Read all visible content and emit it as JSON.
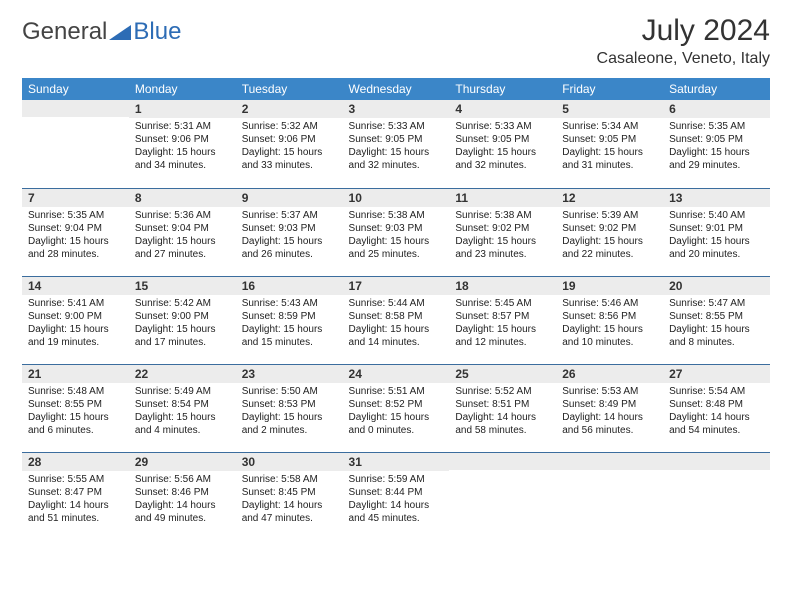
{
  "brand": {
    "word1": "General",
    "word2": "Blue"
  },
  "title": "July 2024",
  "location": "Casaleone, Veneto, Italy",
  "colors": {
    "header_bg": "#3b86c8",
    "header_text": "#ffffff",
    "row_divider": "#3b6d9e",
    "daynum_bg": "#ececec",
    "text": "#222222",
    "brand_blue": "#2d6cb5",
    "brand_dark": "#555555",
    "page_bg": "#ffffff"
  },
  "day_labels": [
    "Sunday",
    "Monday",
    "Tuesday",
    "Wednesday",
    "Thursday",
    "Friday",
    "Saturday"
  ],
  "weeks": [
    [
      {
        "n": "",
        "sr": "",
        "ss": "",
        "d1": "",
        "d2": ""
      },
      {
        "n": "1",
        "sr": "Sunrise: 5:31 AM",
        "ss": "Sunset: 9:06 PM",
        "d1": "Daylight: 15 hours",
        "d2": "and 34 minutes."
      },
      {
        "n": "2",
        "sr": "Sunrise: 5:32 AM",
        "ss": "Sunset: 9:06 PM",
        "d1": "Daylight: 15 hours",
        "d2": "and 33 minutes."
      },
      {
        "n": "3",
        "sr": "Sunrise: 5:33 AM",
        "ss": "Sunset: 9:05 PM",
        "d1": "Daylight: 15 hours",
        "d2": "and 32 minutes."
      },
      {
        "n": "4",
        "sr": "Sunrise: 5:33 AM",
        "ss": "Sunset: 9:05 PM",
        "d1": "Daylight: 15 hours",
        "d2": "and 32 minutes."
      },
      {
        "n": "5",
        "sr": "Sunrise: 5:34 AM",
        "ss": "Sunset: 9:05 PM",
        "d1": "Daylight: 15 hours",
        "d2": "and 31 minutes."
      },
      {
        "n": "6",
        "sr": "Sunrise: 5:35 AM",
        "ss": "Sunset: 9:05 PM",
        "d1": "Daylight: 15 hours",
        "d2": "and 29 minutes."
      }
    ],
    [
      {
        "n": "7",
        "sr": "Sunrise: 5:35 AM",
        "ss": "Sunset: 9:04 PM",
        "d1": "Daylight: 15 hours",
        "d2": "and 28 minutes."
      },
      {
        "n": "8",
        "sr": "Sunrise: 5:36 AM",
        "ss": "Sunset: 9:04 PM",
        "d1": "Daylight: 15 hours",
        "d2": "and 27 minutes."
      },
      {
        "n": "9",
        "sr": "Sunrise: 5:37 AM",
        "ss": "Sunset: 9:03 PM",
        "d1": "Daylight: 15 hours",
        "d2": "and 26 minutes."
      },
      {
        "n": "10",
        "sr": "Sunrise: 5:38 AM",
        "ss": "Sunset: 9:03 PM",
        "d1": "Daylight: 15 hours",
        "d2": "and 25 minutes."
      },
      {
        "n": "11",
        "sr": "Sunrise: 5:38 AM",
        "ss": "Sunset: 9:02 PM",
        "d1": "Daylight: 15 hours",
        "d2": "and 23 minutes."
      },
      {
        "n": "12",
        "sr": "Sunrise: 5:39 AM",
        "ss": "Sunset: 9:02 PM",
        "d1": "Daylight: 15 hours",
        "d2": "and 22 minutes."
      },
      {
        "n": "13",
        "sr": "Sunrise: 5:40 AM",
        "ss": "Sunset: 9:01 PM",
        "d1": "Daylight: 15 hours",
        "d2": "and 20 minutes."
      }
    ],
    [
      {
        "n": "14",
        "sr": "Sunrise: 5:41 AM",
        "ss": "Sunset: 9:00 PM",
        "d1": "Daylight: 15 hours",
        "d2": "and 19 minutes."
      },
      {
        "n": "15",
        "sr": "Sunrise: 5:42 AM",
        "ss": "Sunset: 9:00 PM",
        "d1": "Daylight: 15 hours",
        "d2": "and 17 minutes."
      },
      {
        "n": "16",
        "sr": "Sunrise: 5:43 AM",
        "ss": "Sunset: 8:59 PM",
        "d1": "Daylight: 15 hours",
        "d2": "and 15 minutes."
      },
      {
        "n": "17",
        "sr": "Sunrise: 5:44 AM",
        "ss": "Sunset: 8:58 PM",
        "d1": "Daylight: 15 hours",
        "d2": "and 14 minutes."
      },
      {
        "n": "18",
        "sr": "Sunrise: 5:45 AM",
        "ss": "Sunset: 8:57 PM",
        "d1": "Daylight: 15 hours",
        "d2": "and 12 minutes."
      },
      {
        "n": "19",
        "sr": "Sunrise: 5:46 AM",
        "ss": "Sunset: 8:56 PM",
        "d1": "Daylight: 15 hours",
        "d2": "and 10 minutes."
      },
      {
        "n": "20",
        "sr": "Sunrise: 5:47 AM",
        "ss": "Sunset: 8:55 PM",
        "d1": "Daylight: 15 hours",
        "d2": "and 8 minutes."
      }
    ],
    [
      {
        "n": "21",
        "sr": "Sunrise: 5:48 AM",
        "ss": "Sunset: 8:55 PM",
        "d1": "Daylight: 15 hours",
        "d2": "and 6 minutes."
      },
      {
        "n": "22",
        "sr": "Sunrise: 5:49 AM",
        "ss": "Sunset: 8:54 PM",
        "d1": "Daylight: 15 hours",
        "d2": "and 4 minutes."
      },
      {
        "n": "23",
        "sr": "Sunrise: 5:50 AM",
        "ss": "Sunset: 8:53 PM",
        "d1": "Daylight: 15 hours",
        "d2": "and 2 minutes."
      },
      {
        "n": "24",
        "sr": "Sunrise: 5:51 AM",
        "ss": "Sunset: 8:52 PM",
        "d1": "Daylight: 15 hours",
        "d2": "and 0 minutes."
      },
      {
        "n": "25",
        "sr": "Sunrise: 5:52 AM",
        "ss": "Sunset: 8:51 PM",
        "d1": "Daylight: 14 hours",
        "d2": "and 58 minutes."
      },
      {
        "n": "26",
        "sr": "Sunrise: 5:53 AM",
        "ss": "Sunset: 8:49 PM",
        "d1": "Daylight: 14 hours",
        "d2": "and 56 minutes."
      },
      {
        "n": "27",
        "sr": "Sunrise: 5:54 AM",
        "ss": "Sunset: 8:48 PM",
        "d1": "Daylight: 14 hours",
        "d2": "and 54 minutes."
      }
    ],
    [
      {
        "n": "28",
        "sr": "Sunrise: 5:55 AM",
        "ss": "Sunset: 8:47 PM",
        "d1": "Daylight: 14 hours",
        "d2": "and 51 minutes."
      },
      {
        "n": "29",
        "sr": "Sunrise: 5:56 AM",
        "ss": "Sunset: 8:46 PM",
        "d1": "Daylight: 14 hours",
        "d2": "and 49 minutes."
      },
      {
        "n": "30",
        "sr": "Sunrise: 5:58 AM",
        "ss": "Sunset: 8:45 PM",
        "d1": "Daylight: 14 hours",
        "d2": "and 47 minutes."
      },
      {
        "n": "31",
        "sr": "Sunrise: 5:59 AM",
        "ss": "Sunset: 8:44 PM",
        "d1": "Daylight: 14 hours",
        "d2": "and 45 minutes."
      },
      {
        "n": "",
        "sr": "",
        "ss": "",
        "d1": "",
        "d2": ""
      },
      {
        "n": "",
        "sr": "",
        "ss": "",
        "d1": "",
        "d2": ""
      },
      {
        "n": "",
        "sr": "",
        "ss": "",
        "d1": "",
        "d2": ""
      }
    ]
  ]
}
